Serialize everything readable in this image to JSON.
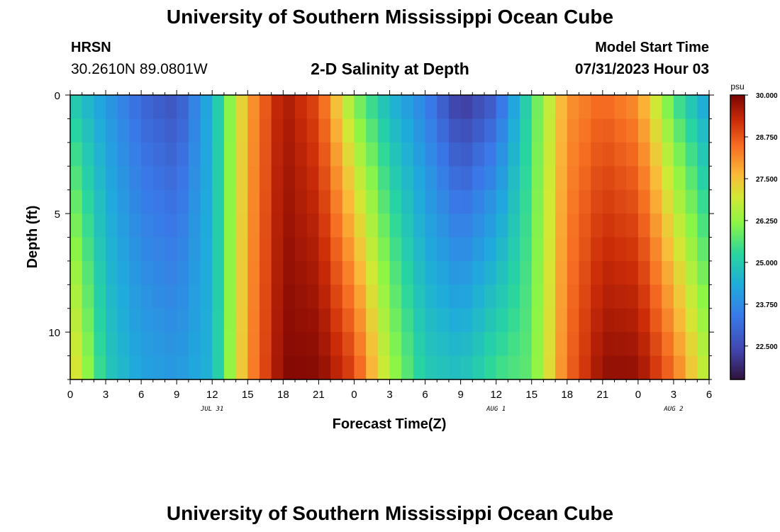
{
  "header": {
    "title": "University of Southern Mississippi Ocean Cube",
    "station": "HRSN",
    "coordinates": "30.2610N  89.0801W",
    "subtitle": "2-D Salinity at Depth",
    "model_start_label": "Model Start Time",
    "model_start_time": "07/31/2023 Hour 03"
  },
  "footer": {
    "title": "University of Southern Mississippi Ocean Cube"
  },
  "chart_data": {
    "type": "heatmap",
    "title": "2-D Salinity at Depth",
    "xlabel": "Forecast Time(Z)",
    "ylabel": "Depth (ft)",
    "x_range_hours": [
      0,
      54
    ],
    "x_tick_labels": [
      "0",
      "3",
      "6",
      "9",
      "12",
      "15",
      "18",
      "21",
      "0",
      "3",
      "6",
      "9",
      "12",
      "15",
      "18",
      "21",
      "0",
      "3",
      "6"
    ],
    "date_labels": [
      {
        "hour": 12,
        "text": "JUL 31"
      },
      {
        "hour": 36,
        "text": "AUG 1"
      },
      {
        "hour": 51,
        "text": "AUG 2"
      }
    ],
    "y_range_ft": [
      0,
      12
    ],
    "y_tick_labels": [
      "0",
      "5",
      "10"
    ],
    "y_tick_values": [
      0,
      5,
      10
    ],
    "colorbar": {
      "unit": "psu",
      "range": [
        21.5,
        30.0
      ],
      "ticks": [
        "22.500",
        "23.750",
        "25.000",
        "26.250",
        "27.500",
        "28.750",
        "30.000"
      ],
      "tick_values": [
        22.5,
        23.75,
        25.0,
        26.25,
        27.5,
        28.75,
        30.0
      ]
    },
    "time_hours": [
      0,
      3,
      6,
      9,
      12,
      15,
      18,
      21,
      24,
      27,
      30,
      33,
      36,
      39,
      42,
      45,
      48,
      51,
      54
    ],
    "surface_salinity": [
      25.0,
      24.0,
      23.0,
      22.6,
      24.5,
      27.8,
      29.6,
      28.8,
      26.0,
      24.5,
      23.5,
      22.0,
      22.8,
      25.5,
      28.0,
      28.5,
      28.0,
      25.5,
      24.0
    ],
    "bottom_salinity": [
      27.5,
      25.0,
      24.2,
      24.0,
      24.5,
      28.0,
      29.9,
      29.9,
      29.0,
      26.5,
      25.0,
      24.8,
      25.5,
      25.8,
      28.5,
      29.8,
      29.8,
      28.5,
      26.5
    ]
  }
}
